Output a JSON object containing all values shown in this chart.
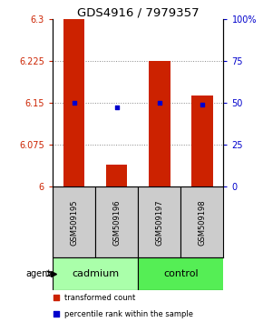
{
  "title": "GDS4916 / 7979357",
  "samples": [
    "GSM509195",
    "GSM509196",
    "GSM509197",
    "GSM509198"
  ],
  "bar_values": [
    6.3,
    6.04,
    6.225,
    6.163
  ],
  "bar_base": 6.0,
  "percentile_values": [
    6.15,
    6.142,
    6.15,
    6.147
  ],
  "ylim": [
    6.0,
    6.3
  ],
  "yticks_left": [
    6.0,
    6.075,
    6.15,
    6.225,
    6.3
  ],
  "yticks_left_labels": [
    "6",
    "6.075",
    "6.15",
    "6.225",
    "6.3"
  ],
  "yticks_right": [
    0,
    25,
    50,
    75,
    100
  ],
  "yticks_right_labels": [
    "0",
    "25",
    "50",
    "75",
    "100%"
  ],
  "bar_color": "#cc2200",
  "dot_color": "#0000cc",
  "group1_label": "cadmium",
  "group1_color": "#aaffaa",
  "group2_label": "control",
  "group2_color": "#55ee55",
  "sample_box_color": "#cccccc",
  "grid_color": "#888888",
  "left_tick_color": "#cc2200",
  "right_tick_color": "#0000cc",
  "title_fontsize": 9.5,
  "tick_fontsize": 7,
  "bar_width": 0.5
}
